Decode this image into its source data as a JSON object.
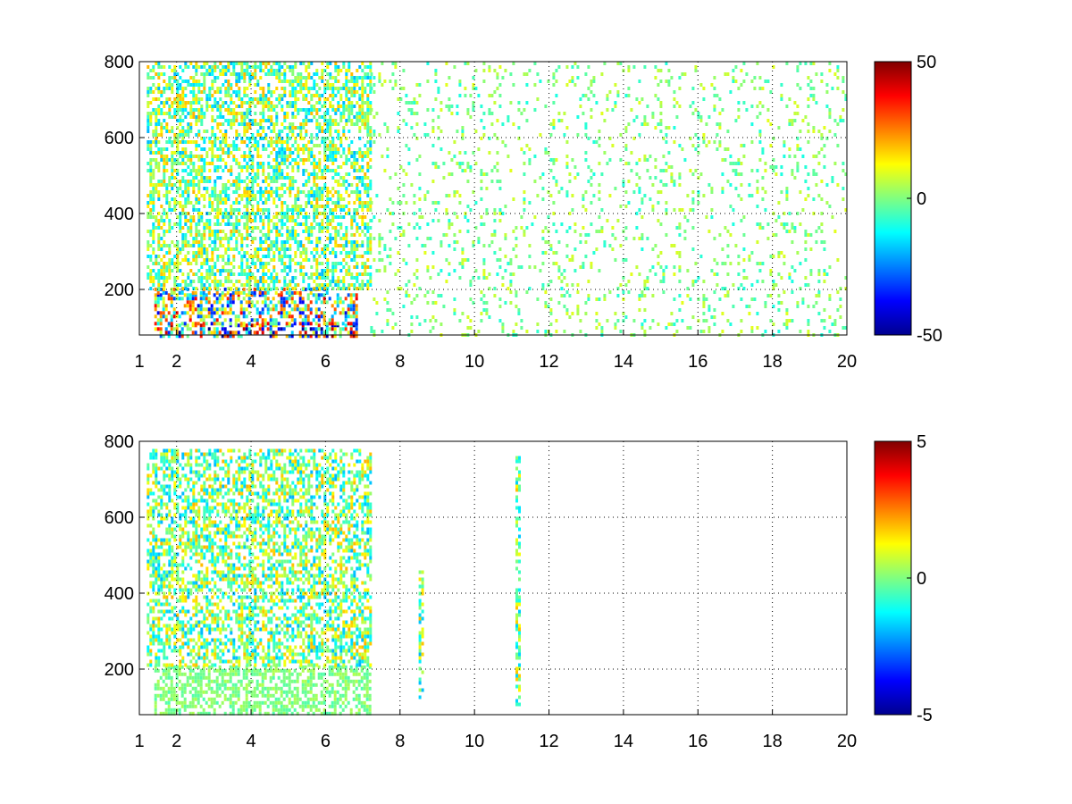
{
  "chart_data": [
    {
      "type": "heatmap",
      "title": "",
      "xlabel": "",
      "ylabel": "",
      "xlim": [
        1,
        20
      ],
      "ylim": [
        80,
        800
      ],
      "xticks": [
        "1",
        "2",
        "4",
        "6",
        "8",
        "10",
        "12",
        "14",
        "16",
        "18",
        "20"
      ],
      "yticks": [
        "200",
        "400",
        "600",
        "800"
      ],
      "grid": true,
      "colorbar": {
        "colormap": "jet",
        "range": [
          -50,
          50
        ],
        "ticks": [
          "50",
          "0",
          "-50"
        ]
      },
      "features": [
        {
          "x": [
            1.4,
            6.9
          ],
          "y": [
            80,
            110
          ],
          "value_range": [
            -50,
            50
          ]
        },
        {
          "x": [
            1.4,
            6.8
          ],
          "y": [
            110,
            190
          ],
          "value_range": [
            -40,
            40
          ]
        },
        {
          "x": [
            1.4,
            6.2
          ],
          "y": [
            190,
            205
          ],
          "value_range": [
            -35,
            35
          ]
        },
        {
          "x": [
            1.2,
            7.2
          ],
          "y": [
            205,
            800
          ],
          "value_range": [
            -20,
            20
          ]
        },
        {
          "x": [
            7.2,
            20
          ],
          "y": [
            80,
            800
          ],
          "value_range": [
            -10,
            10
          ]
        }
      ]
    },
    {
      "type": "heatmap",
      "title": "",
      "xlabel": "",
      "ylabel": "",
      "xlim": [
        1,
        20
      ],
      "ylim": [
        80,
        800
      ],
      "xticks": [
        "1",
        "2",
        "4",
        "6",
        "8",
        "10",
        "12",
        "14",
        "16",
        "18",
        "20"
      ],
      "yticks": [
        "200",
        "400",
        "600",
        "800"
      ],
      "grid": true,
      "colorbar": {
        "colormap": "jet",
        "range": [
          -5,
          5
        ],
        "ticks": [
          "5",
          "0",
          "-5"
        ]
      },
      "features": [
        {
          "x": [
            1.4,
            7.2
          ],
          "y": [
            80,
            210
          ],
          "value_range": [
            -0.5,
            0.5
          ]
        },
        {
          "x": [
            1.2,
            7.2
          ],
          "y": [
            210,
            780
          ],
          "value_range": [
            -2,
            2
          ]
        },
        {
          "x": [
            8.5,
            8.6
          ],
          "y": [
            120,
            460
          ],
          "value_range": [
            -2,
            2
          ]
        },
        {
          "x": [
            11.1,
            11.2
          ],
          "y": [
            110,
            780
          ],
          "value_range": [
            -2,
            2
          ]
        }
      ]
    }
  ]
}
